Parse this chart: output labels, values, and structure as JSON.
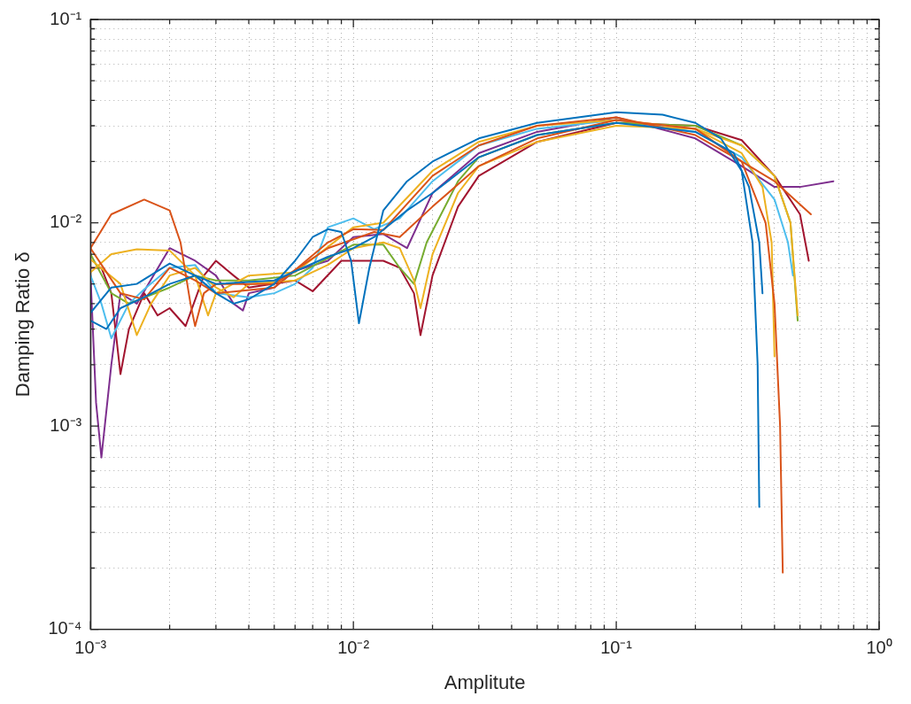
{
  "chart_data": {
    "type": "line",
    "xlabel": "Amplitute",
    "ylabel": "Damping Ratio δ",
    "log": "xy",
    "grid": true,
    "legend": false,
    "marker": "none",
    "line_style": "solid",
    "xlim": [
      0.001,
      1
    ],
    "ylim": [
      0.0001,
      0.1
    ],
    "xticks": [
      {
        "value": 0.001,
        "label": "10⁻³"
      },
      {
        "value": 0.002,
        "label": null
      },
      {
        "value": 0.003,
        "label": null
      },
      {
        "value": 0.004,
        "label": null
      },
      {
        "value": 0.005,
        "label": null
      },
      {
        "value": 0.006,
        "label": null
      },
      {
        "value": 0.007,
        "label": null
      },
      {
        "value": 0.008,
        "label": null
      },
      {
        "value": 0.009,
        "label": null
      },
      {
        "value": 0.01,
        "label": "10⁻²"
      },
      {
        "value": 0.02,
        "label": null
      },
      {
        "value": 0.03,
        "label": null
      },
      {
        "value": 0.04,
        "label": null
      },
      {
        "value": 0.05,
        "label": null
      },
      {
        "value": 0.06,
        "label": null
      },
      {
        "value": 0.07,
        "label": null
      },
      {
        "value": 0.08,
        "label": null
      },
      {
        "value": 0.09,
        "label": null
      },
      {
        "value": 0.1,
        "label": "10⁻¹"
      },
      {
        "value": 0.2,
        "label": null
      },
      {
        "value": 0.3,
        "label": null
      },
      {
        "value": 0.4,
        "label": null
      },
      {
        "value": 0.5,
        "label": null
      },
      {
        "value": 0.6,
        "label": null
      },
      {
        "value": 0.7,
        "label": null
      },
      {
        "value": 0.8,
        "label": null
      },
      {
        "value": 0.9,
        "label": null
      },
      {
        "value": 1,
        "label": "10⁰"
      }
    ],
    "yticks": [
      {
        "value": 0.0001,
        "label": "10⁻⁴"
      },
      {
        "value": 0.0002,
        "label": null
      },
      {
        "value": 0.0003,
        "label": null
      },
      {
        "value": 0.0004,
        "label": null
      },
      {
        "value": 0.0005,
        "label": null
      },
      {
        "value": 0.0006,
        "label": null
      },
      {
        "value": 0.0007,
        "label": null
      },
      {
        "value": 0.0008,
        "label": null
      },
      {
        "value": 0.0009,
        "label": null
      },
      {
        "value": 0.001,
        "label": "10⁻³"
      },
      {
        "value": 0.002,
        "label": null
      },
      {
        "value": 0.003,
        "label": null
      },
      {
        "value": 0.004,
        "label": null
      },
      {
        "value": 0.005,
        "label": null
      },
      {
        "value": 0.006,
        "label": null
      },
      {
        "value": 0.007,
        "label": null
      },
      {
        "value": 0.008,
        "label": null
      },
      {
        "value": 0.009,
        "label": null
      },
      {
        "value": 0.01,
        "label": "10⁻²"
      },
      {
        "value": 0.02,
        "label": null
      },
      {
        "value": 0.03,
        "label": null
      },
      {
        "value": 0.04,
        "label": null
      },
      {
        "value": 0.05,
        "label": null
      },
      {
        "value": 0.06,
        "label": null
      },
      {
        "value": 0.07,
        "label": null
      },
      {
        "value": 0.08,
        "label": null
      },
      {
        "value": 0.09,
        "label": null
      },
      {
        "value": 0.1,
        "label": "10⁻¹"
      }
    ],
    "series": [
      {
        "color": "#0072bd",
        "x": [
          0.001,
          0.00115,
          0.0013,
          0.0016,
          0.002,
          0.0025,
          0.003,
          0.0035,
          0.004,
          0.005,
          0.006,
          0.007,
          0.008,
          0.009,
          0.0098,
          0.0105,
          0.0115,
          0.013,
          0.016,
          0.02,
          0.03,
          0.05,
          0.1,
          0.15,
          0.2,
          0.25,
          0.3,
          0.33,
          0.345,
          0.35
        ],
        "values": [
          0.0033,
          0.003,
          0.0038,
          0.0043,
          0.005,
          0.0055,
          0.0045,
          0.004,
          0.0042,
          0.005,
          0.0065,
          0.0085,
          0.0093,
          0.009,
          0.0065,
          0.0032,
          0.006,
          0.0115,
          0.016,
          0.02,
          0.026,
          0.031,
          0.035,
          0.034,
          0.031,
          0.026,
          0.018,
          0.008,
          0.002,
          0.0004
        ]
      },
      {
        "color": "#0072bd",
        "x": [
          0.001,
          0.0012,
          0.0015,
          0.002,
          0.0025,
          0.003,
          0.005,
          0.008,
          0.01,
          0.012,
          0.016,
          0.02,
          0.03,
          0.05,
          0.1,
          0.2,
          0.28,
          0.32,
          0.35,
          0.36
        ],
        "values": [
          0.0036,
          0.0048,
          0.005,
          0.0063,
          0.0055,
          0.005,
          0.0052,
          0.0068,
          0.0075,
          0.0085,
          0.0115,
          0.014,
          0.021,
          0.027,
          0.031,
          0.028,
          0.022,
          0.015,
          0.008,
          0.0045
        ]
      },
      {
        "color": "#d95319",
        "x": [
          0.001,
          0.0012,
          0.0016,
          0.002,
          0.0022,
          0.0024,
          0.0025,
          0.0027,
          0.003,
          0.005,
          0.008,
          0.012,
          0.015,
          0.02,
          0.03,
          0.05,
          0.1,
          0.2,
          0.3,
          0.37,
          0.4,
          0.42,
          0.43
        ],
        "values": [
          0.0075,
          0.011,
          0.013,
          0.0115,
          0.008,
          0.004,
          0.0031,
          0.0045,
          0.005,
          0.005,
          0.0075,
          0.009,
          0.0085,
          0.012,
          0.019,
          0.026,
          0.032,
          0.029,
          0.02,
          0.01,
          0.004,
          0.001,
          0.00019
        ]
      },
      {
        "color": "#d95319",
        "x": [
          0.001,
          0.0013,
          0.0016,
          0.002,
          0.0025,
          0.003,
          0.005,
          0.008,
          0.01,
          0.013,
          0.02,
          0.03,
          0.05,
          0.1,
          0.2,
          0.3,
          0.4,
          0.55
        ],
        "values": [
          0.0075,
          0.0045,
          0.0042,
          0.006,
          0.0052,
          0.0045,
          0.0048,
          0.008,
          0.0093,
          0.0092,
          0.017,
          0.024,
          0.03,
          0.033,
          0.027,
          0.02,
          0.016,
          0.011
        ]
      },
      {
        "color": "#edb120",
        "x": [
          0.001,
          0.0013,
          0.0015,
          0.0017,
          0.002,
          0.0025,
          0.003,
          0.0035,
          0.004,
          0.006,
          0.008,
          0.01,
          0.013,
          0.015,
          0.017,
          0.018,
          0.02,
          0.025,
          0.03,
          0.05,
          0.1,
          0.2,
          0.3,
          0.36,
          0.39,
          0.4
        ],
        "values": [
          0.0066,
          0.005,
          0.0028,
          0.004,
          0.0055,
          0.006,
          0.0048,
          0.0043,
          0.005,
          0.0052,
          0.0062,
          0.0075,
          0.008,
          0.0075,
          0.0052,
          0.0038,
          0.007,
          0.014,
          0.019,
          0.025,
          0.03,
          0.029,
          0.022,
          0.015,
          0.008,
          0.0022
        ]
      },
      {
        "color": "#edb120",
        "x": [
          0.001,
          0.0012,
          0.0015,
          0.002,
          0.0025,
          0.0028,
          0.003,
          0.004,
          0.006,
          0.01,
          0.013,
          0.02,
          0.03,
          0.05,
          0.1,
          0.2,
          0.3,
          0.4,
          0.46,
          0.49
        ],
        "values": [
          0.0057,
          0.007,
          0.0074,
          0.0073,
          0.0055,
          0.0035,
          0.0045,
          0.0055,
          0.0057,
          0.0095,
          0.01,
          0.018,
          0.025,
          0.03,
          0.032,
          0.029,
          0.024,
          0.017,
          0.01,
          0.0035
        ]
      },
      {
        "color": "#77ac30",
        "x": [
          0.001,
          0.0012,
          0.0014,
          0.002,
          0.0025,
          0.003,
          0.004,
          0.006,
          0.01,
          0.013,
          0.015,
          0.017,
          0.019,
          0.025,
          0.03,
          0.05,
          0.1,
          0.2,
          0.3,
          0.4,
          0.46,
          0.49
        ],
        "values": [
          0.007,
          0.0045,
          0.004,
          0.0048,
          0.0055,
          0.0052,
          0.0052,
          0.0055,
          0.0078,
          0.0078,
          0.006,
          0.005,
          0.008,
          0.016,
          0.021,
          0.027,
          0.031,
          0.03,
          0.024,
          0.017,
          0.01,
          0.0033
        ]
      },
      {
        "color": "#4dbeee",
        "x": [
          0.001,
          0.0011,
          0.0012,
          0.0014,
          0.0016,
          0.002,
          0.0025,
          0.003,
          0.004,
          0.005,
          0.006,
          0.007,
          0.008,
          0.01,
          0.012,
          0.015,
          0.02,
          0.03,
          0.05,
          0.1,
          0.2,
          0.3,
          0.4,
          0.45,
          0.47
        ],
        "values": [
          0.0055,
          0.004,
          0.0027,
          0.004,
          0.0047,
          0.006,
          0.0062,
          0.0045,
          0.0043,
          0.0045,
          0.005,
          0.006,
          0.0095,
          0.0105,
          0.0093,
          0.0105,
          0.016,
          0.024,
          0.029,
          0.032,
          0.028,
          0.021,
          0.013,
          0.008,
          0.0055
        ]
      },
      {
        "color": "#a2142f",
        "x": [
          0.001,
          0.0011,
          0.0012,
          0.0013,
          0.0014,
          0.0016,
          0.0018,
          0.002,
          0.0023,
          0.0027,
          0.003,
          0.0035,
          0.004,
          0.006,
          0.007,
          0.009,
          0.011,
          0.013,
          0.015,
          0.017,
          0.018,
          0.02,
          0.025,
          0.03,
          0.05,
          0.1,
          0.2,
          0.3,
          0.4,
          0.5,
          0.54
        ],
        "values": [
          0.006,
          0.006,
          0.0045,
          0.0018,
          0.003,
          0.0045,
          0.0035,
          0.0038,
          0.0031,
          0.0055,
          0.0065,
          0.0055,
          0.0048,
          0.0052,
          0.0046,
          0.0065,
          0.0065,
          0.0065,
          0.006,
          0.0045,
          0.0028,
          0.0055,
          0.012,
          0.017,
          0.025,
          0.031,
          0.03,
          0.0255,
          0.017,
          0.011,
          0.0065
        ]
      },
      {
        "color": "#7e2f8e",
        "x": [
          0.001,
          0.00105,
          0.0011,
          0.0012,
          0.0013,
          0.0015,
          0.002,
          0.0025,
          0.003,
          0.0035,
          0.0038,
          0.004,
          0.005,
          0.006,
          0.008,
          0.01,
          0.013,
          0.016,
          0.02,
          0.03,
          0.05,
          0.1,
          0.2,
          0.3,
          0.4,
          0.5,
          0.67
        ],
        "values": [
          0.0055,
          0.0013,
          0.0007,
          0.002,
          0.0045,
          0.004,
          0.0075,
          0.0065,
          0.0055,
          0.004,
          0.0037,
          0.0045,
          0.0048,
          0.0058,
          0.0065,
          0.0085,
          0.0088,
          0.0075,
          0.014,
          0.022,
          0.028,
          0.033,
          0.026,
          0.019,
          0.015,
          0.015,
          0.016
        ]
      }
    ]
  }
}
